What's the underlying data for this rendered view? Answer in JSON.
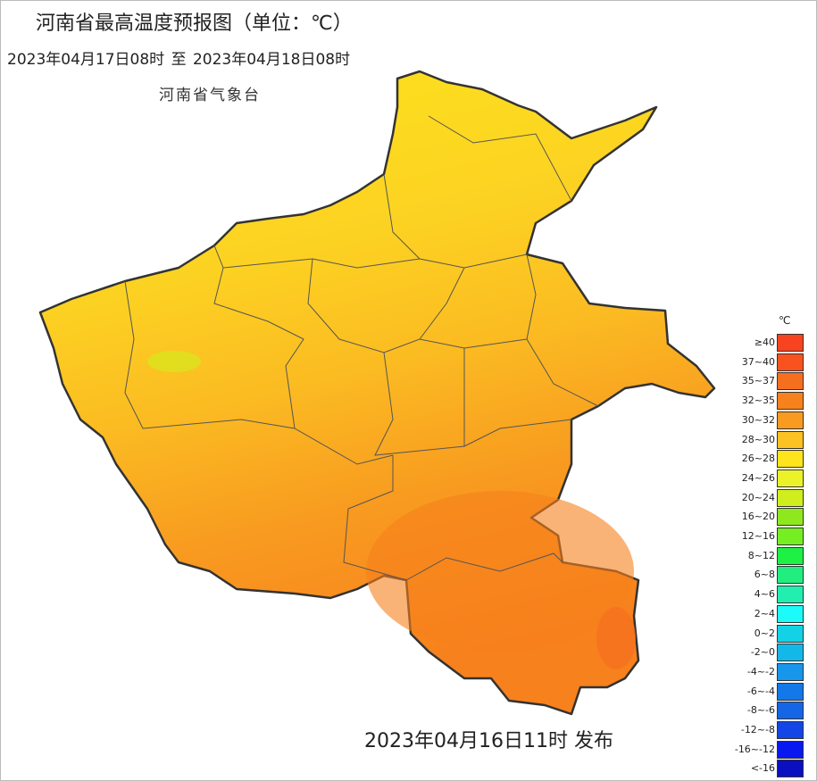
{
  "title": "河南省最高温度预报图（单位：℃）",
  "period": "2023年04月17日08时  至  2023年04月18日08时",
  "agency": "河南省气象台",
  "issued": "2023年04月16日11时 发布",
  "legend": {
    "unit": "℃",
    "items": [
      {
        "label": "≥40",
        "color": "#f7431f"
      },
      {
        "label": "37~40",
        "color": "#f8531e"
      },
      {
        "label": "35~37",
        "color": "#f66f1f"
      },
      {
        "label": "32~35",
        "color": "#f7811d"
      },
      {
        "label": "30~32",
        "color": "#f89b20"
      },
      {
        "label": "28~30",
        "color": "#fcc122"
      },
      {
        "label": "26~28",
        "color": "#fde41c"
      },
      {
        "label": "24~26",
        "color": "#ebf22a"
      },
      {
        "label": "20~24",
        "color": "#d0ee1d"
      },
      {
        "label": "16~20",
        "color": "#8fe81e"
      },
      {
        "label": "12~16",
        "color": "#75ee22"
      },
      {
        "label": "8~12",
        "color": "#1ef044"
      },
      {
        "label": "6~8",
        "color": "#22ee80"
      },
      {
        "label": "4~6",
        "color": "#22eeb0"
      },
      {
        "label": "2~4",
        "color": "#1cfafa"
      },
      {
        "label": "0~2",
        "color": "#14d2e6"
      },
      {
        "label": "-2~0",
        "color": "#14b8e8"
      },
      {
        "label": "-4~-2",
        "color": "#1896ec"
      },
      {
        "label": "-6~-4",
        "color": "#1478e8"
      },
      {
        "label": "-8~-6",
        "color": "#1466e6"
      },
      {
        "label": "-12~-8",
        "color": "#1446e6"
      },
      {
        "label": "-16~-12",
        "color": "#0a18f0"
      },
      {
        "label": "<-16",
        "color": "#0a0fc0"
      }
    ]
  }
}
